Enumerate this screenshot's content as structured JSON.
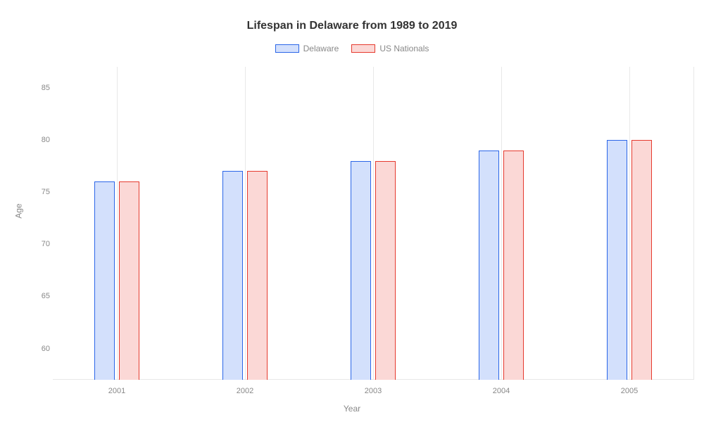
{
  "chart": {
    "type": "bar",
    "title": "Lifespan in Delaware from 1989 to 2019",
    "title_fontsize": 16,
    "xlabel": "Year",
    "ylabel": "Age",
    "label_fontsize": 12,
    "tick_fontsize": 11,
    "background_color": "#ffffff",
    "grid_color": "#e8e8e8",
    "tick_color": "#888888",
    "categories": [
      "2001",
      "2002",
      "2003",
      "2004",
      "2005"
    ],
    "ylim": [
      57,
      87
    ],
    "yticks": [
      60,
      65,
      70,
      75,
      80,
      85
    ],
    "bar_width_pct": 3.2,
    "bar_gap_pct": 0.6,
    "legend_position": "top",
    "series": [
      {
        "name": "Delaware",
        "border_color": "#2b66e8",
        "fill_color": "#d3e0fc",
        "values": [
          76,
          77,
          78,
          79,
          80
        ]
      },
      {
        "name": "US Nationals",
        "border_color": "#e63a2e",
        "fill_color": "#fbd8d6",
        "values": [
          76,
          77,
          78,
          79,
          80
        ]
      }
    ]
  }
}
